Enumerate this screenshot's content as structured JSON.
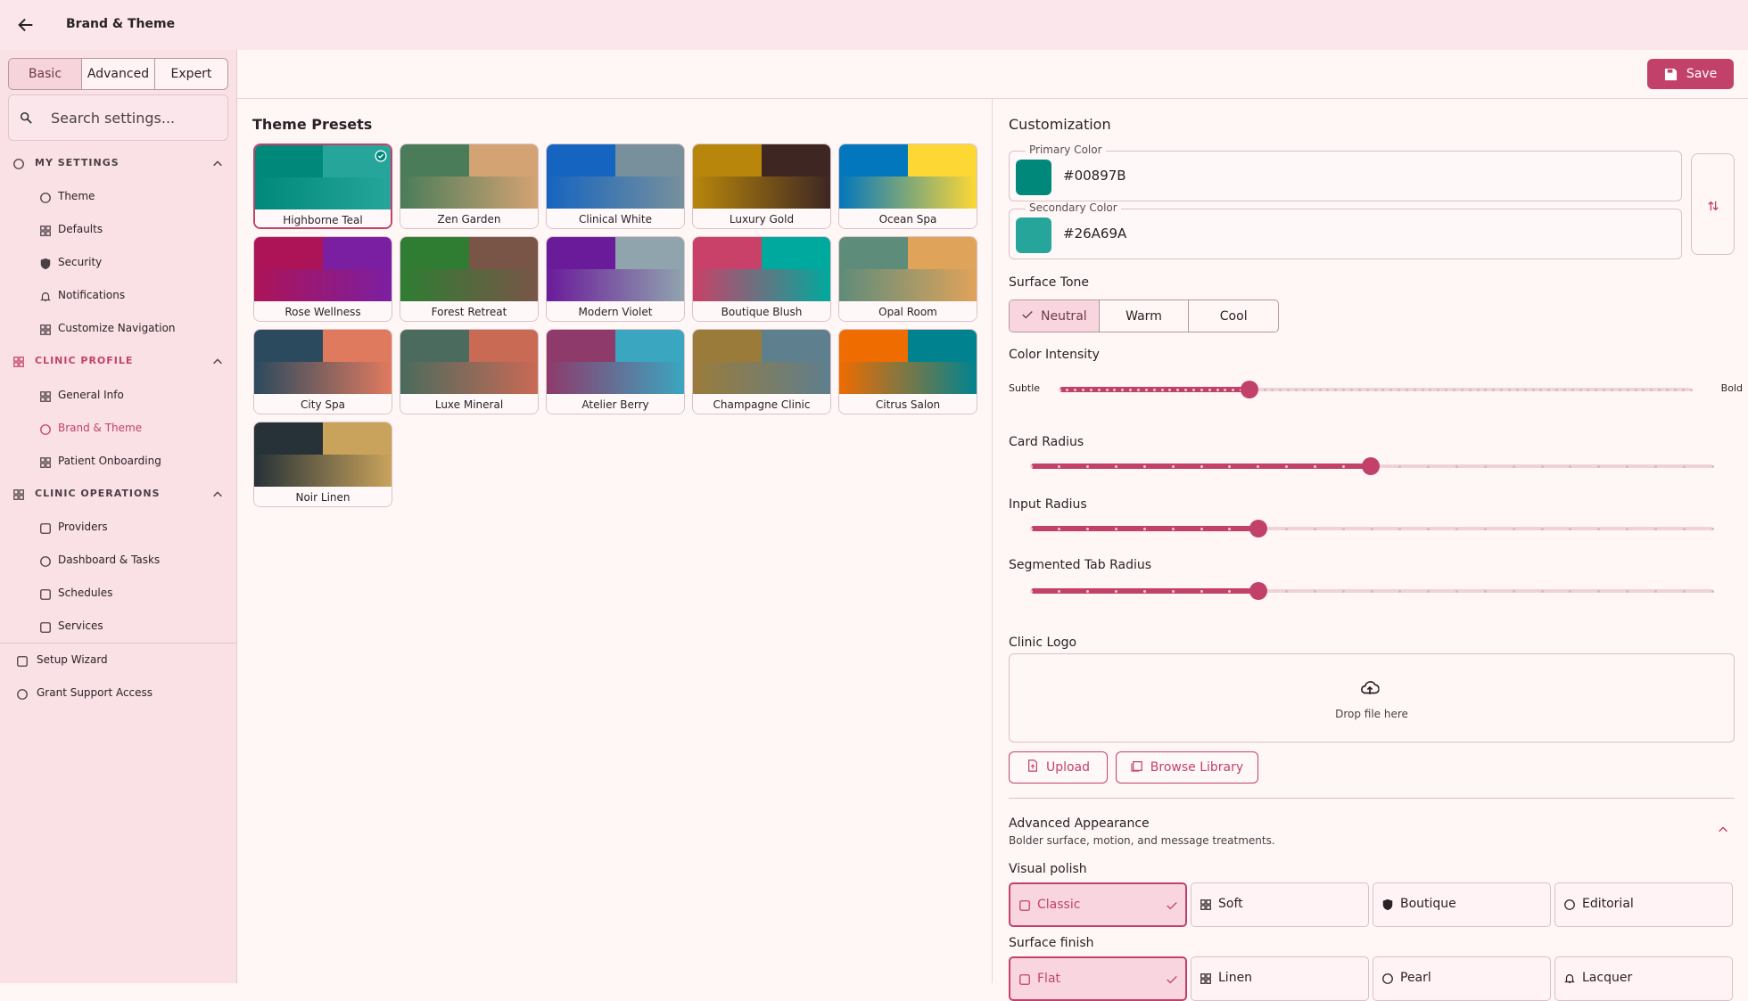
{
  "header": {
    "title": "Brand & Theme"
  },
  "sidebar": {
    "tabs": [
      "Basic",
      "Advanced",
      "Expert"
    ],
    "active_tab": 0,
    "search_placeholder": "Search settings...",
    "sections": [
      {
        "title": "MY SETTINGS",
        "items": [
          "Theme",
          "Defaults",
          "Security",
          "Notifications",
          "Customize Navigation"
        ]
      },
      {
        "title": "CLINIC PROFILE",
        "items": [
          "General Info",
          "Brand & Theme",
          "Patient Onboarding"
        ]
      },
      {
        "title": "CLINIC OPERATIONS",
        "items": [
          "Providers",
          "Dashboard & Tasks",
          "Schedules",
          "Services"
        ]
      }
    ],
    "active_item": "Brand & Theme",
    "footer_items": [
      "Setup Wizard",
      "Grant Support Access"
    ]
  },
  "toolbar": {
    "save": "Save"
  },
  "presets": {
    "title": "Theme Presets",
    "selected": 0,
    "items": [
      {
        "name": "Highborne Teal",
        "colors": [
          "#00897B",
          "#26A69A"
        ]
      },
      {
        "name": "Zen Garden",
        "colors": [
          "#4a7c59",
          "#d4a373"
        ]
      },
      {
        "name": "Clinical White",
        "colors": [
          "#1565c0",
          "#78909c"
        ]
      },
      {
        "name": "Luxury Gold",
        "colors": [
          "#b8860b",
          "#3e2723"
        ]
      },
      {
        "name": "Ocean Spa",
        "colors": [
          "#0277bd",
          "#fdd835"
        ]
      },
      {
        "name": "Rose Wellness",
        "colors": [
          "#ad1457",
          "#7b1fa2"
        ]
      },
      {
        "name": "Forest Retreat",
        "colors": [
          "#2e7d32",
          "#795548"
        ]
      },
      {
        "name": "Modern Violet",
        "colors": [
          "#6a1b9a",
          "#90a4ae"
        ]
      },
      {
        "name": "Boutique Blush",
        "colors": [
          "#c94068",
          "#00a99d"
        ]
      },
      {
        "name": "Opal Room",
        "colors": [
          "#5e8c7a",
          "#e0a35a"
        ]
      },
      {
        "name": "City Spa",
        "colors": [
          "#2b4a5e",
          "#e07a5f"
        ]
      },
      {
        "name": "Luxe Mineral",
        "colors": [
          "#4a6b5d",
          "#c96a55"
        ]
      },
      {
        "name": "Atelier Berry",
        "colors": [
          "#8e3a6b",
          "#3aa6c0"
        ]
      },
      {
        "name": "Champagne Clinic",
        "colors": [
          "#9a7b3a",
          "#5e7f8e"
        ]
      },
      {
        "name": "Citrus Salon",
        "colors": [
          "#ef6c00",
          "#00838f"
        ]
      },
      {
        "name": "Noir Linen",
        "colors": [
          "#263238",
          "#c9a35b"
        ]
      }
    ]
  },
  "customization": {
    "title": "Customization",
    "primary": {
      "label": "Primary Color",
      "value": "#00897B"
    },
    "secondary": {
      "label": "Secondary Color",
      "value": "#26A69A"
    },
    "surface_tone": {
      "label": "Surface Tone",
      "options": [
        "Neutral",
        "Warm",
        "Cool"
      ],
      "selected": 0
    },
    "color_intensity": {
      "label": "Color Intensity",
      "min_label": "Subtle",
      "max_label": "Bold"
    },
    "sliders": [
      "Card Radius",
      "Input Radius",
      "Segmented Tab Radius"
    ],
    "logo": {
      "label": "Clinic Logo",
      "drop": "Drop file here",
      "upload": "Upload",
      "browse": "Browse Library"
    },
    "advanced": {
      "title": "Advanced Appearance",
      "subtitle": "Bolder surface, motion, and message treatments.",
      "visual_polish": {
        "label": "Visual polish",
        "options": [
          "Classic",
          "Soft",
          "Boutique",
          "Editorial"
        ],
        "selected": 0
      },
      "surface_finish": {
        "label": "Surface finish",
        "options": [
          "Flat",
          "Linen",
          "Pearl",
          "Lacquer"
        ],
        "selected": 0
      }
    }
  }
}
